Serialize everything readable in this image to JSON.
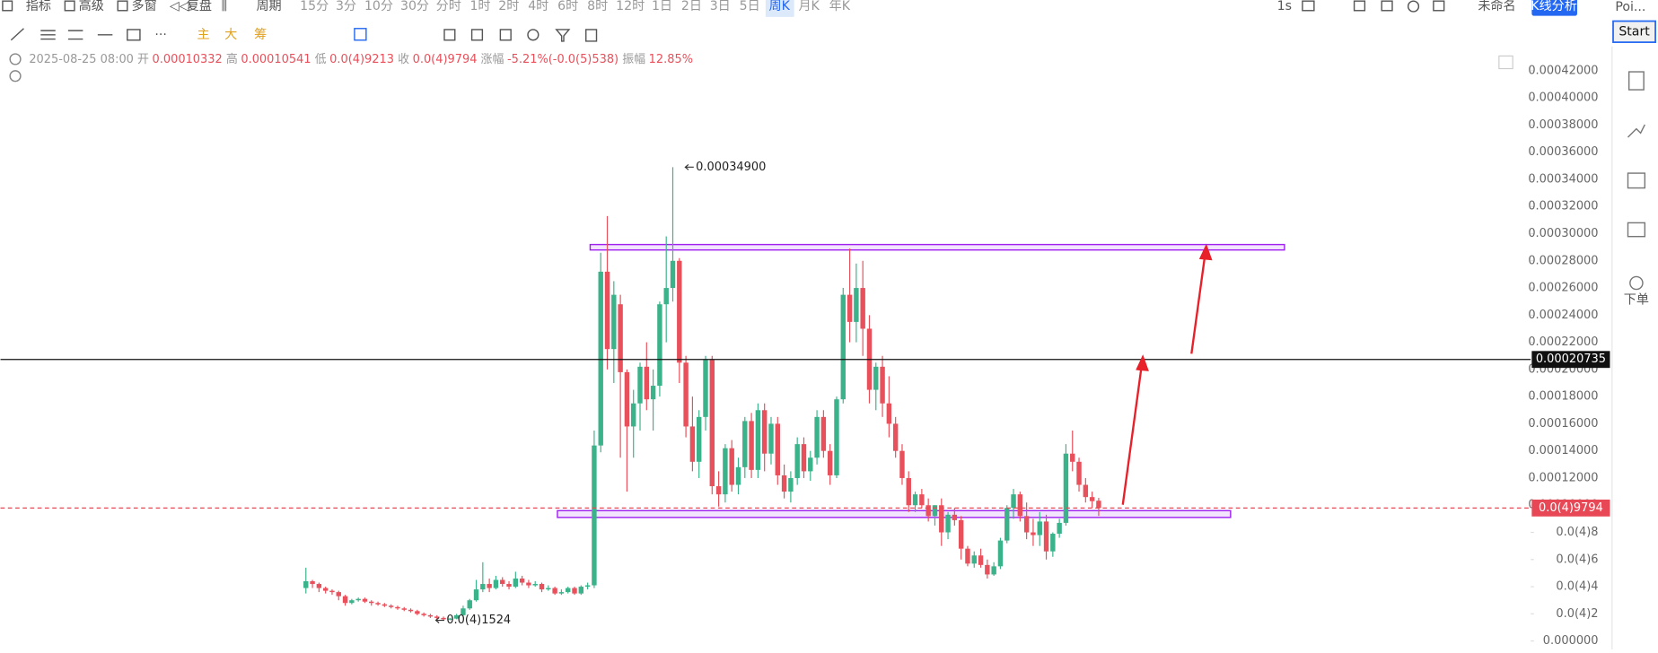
{
  "toolbar": {
    "left": [
      "指标",
      "高级",
      "多窗",
      "复盘",
      "周期"
    ],
    "periods": [
      "15分",
      "3分",
      "10分",
      "30分",
      "分时",
      "1时",
      "2时",
      "4时",
      "6时",
      "8时",
      "12时",
      "1日",
      "2日",
      "3日",
      "5日",
      "周K",
      "月K",
      "年K"
    ],
    "active_period": "周K",
    "right": {
      "interval": "1s",
      "layout_name": "未命名",
      "analysis": "K线分析",
      "panel_tab": "Poi...",
      "start": "Start",
      "order": "下单"
    },
    "drawing": [
      "主",
      "大",
      "筹"
    ]
  },
  "info": {
    "time": "2025-08-25 08:00",
    "open_label": "开",
    "open": "0.00010332",
    "high_label": "高",
    "high": "0.00010541",
    "low_label": "低",
    "low": "0.0(4)9213",
    "close_label": "收",
    "close": "0.0(4)9794",
    "change_label": "涨幅",
    "change": "-5.21%(-0.0(5)538)",
    "amplitude_label": "振幅",
    "amplitude": "12.85%"
  },
  "chart_data": {
    "type": "candlestick",
    "up_color": "#3bb38a",
    "down_color": "#e8505b",
    "grid": false,
    "ylim": [
      -6.2e-06,
      0.0004371
    ],
    "yticks": [
      {
        "value": 0.00042,
        "label": "0.00042000"
      },
      {
        "value": 0.0004,
        "label": "0.00040000"
      },
      {
        "value": 0.00038,
        "label": "0.00038000"
      },
      {
        "value": 0.00036,
        "label": "0.00036000"
      },
      {
        "value": 0.00034,
        "label": "0.00034000"
      },
      {
        "value": 0.00032,
        "label": "0.00032000"
      },
      {
        "value": 0.0003,
        "label": "0.00030000"
      },
      {
        "value": 0.00028,
        "label": "0.00028000"
      },
      {
        "value": 0.00026,
        "label": "0.00026000"
      },
      {
        "value": 0.00024,
        "label": "0.00024000"
      },
      {
        "value": 0.00022,
        "label": "0.00022000"
      },
      {
        "value": 0.0002,
        "label": "0.00020000"
      },
      {
        "value": 0.00018,
        "label": "0.00018000"
      },
      {
        "value": 0.00016,
        "label": "0.00016000"
      },
      {
        "value": 0.00014,
        "label": "0.00014000"
      },
      {
        "value": 0.00012,
        "label": "0.00012000"
      },
      {
        "value": 0.0001,
        "label": "0.00010000"
      },
      {
        "value": 8e-05,
        "label": "0.0(4)8"
      },
      {
        "value": 6e-05,
        "label": "0.0(4)6"
      },
      {
        "value": 4e-05,
        "label": "0.0(4)4"
      },
      {
        "value": 2e-05,
        "label": "0.0(4)2"
      },
      {
        "value": 0,
        "label": "0.000000"
      }
    ],
    "candles": [
      [
        3.9e-05,
        5.4e-05,
        3.5e-05,
        4.4e-05
      ],
      [
        4.4e-05,
        4.5e-05,
        3.9e-05,
        4.2e-05
      ],
      [
        4.2e-05,
        4.3e-05,
        3.6e-05,
        3.9e-05
      ],
      [
        3.9e-05,
        4e-05,
        3.5e-05,
        3.7e-05
      ],
      [
        3.7e-05,
        3.8e-05,
        3.4e-05,
        3.6e-05
      ],
      [
        3.6e-05,
        3.7e-05,
        3e-05,
        3.3e-05
      ],
      [
        3.3e-05,
        3.4e-05,
        2.6e-05,
        2.8e-05
      ],
      [
        2.8e-05,
        3.1e-05,
        2.7e-05,
        3e-05
      ],
      [
        3e-05,
        3.2e-05,
        2.9e-05,
        3.1e-05
      ],
      [
        3.1e-05,
        3.2e-05,
        2.8e-05,
        2.9e-05
      ],
      [
        2.9e-05,
        3e-05,
        2.6e-05,
        2.8e-05
      ],
      [
        2.8e-05,
        2.9e-05,
        2.6e-05,
        2.7e-05
      ],
      [
        2.7e-05,
        2.8e-05,
        2.5e-05,
        2.6e-05
      ],
      [
        2.6e-05,
        2.7e-05,
        2.4e-05,
        2.5e-05
      ],
      [
        2.5e-05,
        2.6e-05,
        2.3e-05,
        2.4e-05
      ],
      [
        2.4e-05,
        2.5e-05,
        2.2e-05,
        2.3e-05
      ],
      [
        2.3e-05,
        2.4e-05,
        2.1e-05,
        2.2e-05
      ],
      [
        2.2e-05,
        2.3e-05,
        1.9e-05,
        2e-05
      ],
      [
        2e-05,
        2.1e-05,
        1.8e-05,
        1.9e-05
      ],
      [
        1.9e-05,
        2e-05,
        1.7e-05,
        1.8e-05
      ],
      [
        1.8e-05,
        1.9e-05,
        1.6e-05,
        1.7e-05
      ],
      [
        1.7e-05,
        1.8e-05,
        1.55e-05,
        1.6e-05
      ],
      [
        1.6e-05,
        1.7e-05,
        1.524e-05,
        1.65e-05
      ],
      [
        1.65e-05,
        2e-05,
        1.6e-05,
        1.9e-05
      ],
      [
        1.9e-05,
        2.6e-05,
        1.85e-05,
        2.4e-05
      ],
      [
        2.4e-05,
        3.1e-05,
        2.3e-05,
        3e-05
      ],
      [
        3e-05,
        4.5e-05,
        2.9e-05,
        3.8e-05
      ],
      [
        3.8e-05,
        5.8e-05,
        3.6e-05,
        4.2e-05
      ],
      [
        4.2e-05,
        4.6e-05,
        3.6e-05,
        3.9e-05
      ],
      [
        3.9e-05,
        4.8e-05,
        3.8e-05,
        4.5e-05
      ],
      [
        4.5e-05,
        4.7e-05,
        4e-05,
        4.2e-05
      ],
      [
        4.2e-05,
        4.4e-05,
        3.8e-05,
        4e-05
      ],
      [
        4e-05,
        5.1e-05,
        3.9e-05,
        4.6e-05
      ],
      [
        4.6e-05,
        4.8e-05,
        4.1e-05,
        4.3e-05
      ],
      [
        4.3e-05,
        4.5e-05,
        3.9e-05,
        4.1e-05
      ],
      [
        4.1e-05,
        4.4e-05,
        4e-05,
        4.2e-05
      ],
      [
        4.2e-05,
        4.3e-05,
        3.6e-05,
        3.8e-05
      ],
      [
        3.8e-05,
        4.1e-05,
        3.7e-05,
        3.9e-05
      ],
      [
        3.9e-05,
        4e-05,
        3.4e-05,
        3.5e-05
      ],
      [
        3.5e-05,
        3.8e-05,
        3.4e-05,
        3.6e-05
      ],
      [
        3.6e-05,
        4e-05,
        3.5e-05,
        3.9e-05
      ],
      [
        3.9e-05,
        4e-05,
        3.4e-05,
        3.5e-05
      ],
      [
        3.5e-05,
        4.1e-05,
        3.4e-05,
        4e-05
      ],
      [
        4e-05,
        4.3e-05,
        3.8e-05,
        4.1e-05
      ],
      [
        4.1e-05,
        0.000155,
        3.9e-05,
        0.000144
      ],
      [
        0.000144,
        0.000286,
        0.000139,
        0.000272
      ],
      [
        0.000272,
        0.000313,
        0.0002,
        0.000215
      ],
      [
        0.000215,
        0.000265,
        0.00019,
        0.000255
      ],
      [
        0.000248,
        0.000255,
        0.000135,
        0.000198
      ],
      [
        0.000198,
        0.0002,
        0.00011,
        0.000158
      ],
      [
        0.000158,
        0.000185,
        0.000135,
        0.000175
      ],
      [
        0.000175,
        0.000205,
        0.000155,
        0.000202
      ],
      [
        0.000202,
        0.00022,
        0.00017,
        0.000178
      ],
      [
        0.000178,
        0.0002,
        0.000155,
        0.000188
      ],
      [
        0.000188,
        0.00025,
        0.00018,
        0.000248
      ],
      [
        0.000248,
        0.000298,
        0.00022,
        0.00026
      ],
      [
        0.00026,
        0.000349,
        0.00025,
        0.00028
      ],
      [
        0.00028,
        0.000282,
        0.00019,
        0.000205
      ],
      [
        0.000205,
        0.00021,
        0.00015,
        0.000158
      ],
      [
        0.000158,
        0.00018,
        0.000125,
        0.000132
      ],
      [
        0.000132,
        0.00017,
        0.00012,
        0.000165
      ],
      [
        0.000165,
        0.00021,
        0.000155,
        0.000207
      ],
      [
        0.000207,
        0.00021,
        0.000108,
        0.000114
      ],
      [
        0.000114,
        0.000125,
        9.9e-05,
        0.000108
      ],
      [
        0.000108,
        0.000145,
        0.000102,
        0.000142
      ],
      [
        0.000142,
        0.000148,
        0.00011,
        0.000115
      ],
      [
        0.000115,
        0.000135,
        0.000108,
        0.000128
      ],
      [
        0.000128,
        0.000165,
        0.00012,
        0.000162
      ],
      [
        0.000162,
        0.000168,
        0.00012,
        0.000126
      ],
      [
        0.000126,
        0.000175,
        0.00012,
        0.00017
      ],
      [
        0.00017,
        0.000175,
        0.000125,
        0.000138
      ],
      [
        0.000138,
        0.000165,
        0.00013,
        0.00016
      ],
      [
        0.00016,
        0.000165,
        0.000115,
        0.000122
      ],
      [
        0.000122,
        0.00013,
        0.000105,
        0.00011
      ],
      [
        0.00011,
        0.000125,
        0.000102,
        0.00012
      ],
      [
        0.00012,
        0.00015,
        0.000115,
        0.000145
      ],
      [
        0.000145,
        0.00015,
        0.00012,
        0.000125
      ],
      [
        0.000125,
        0.00014,
        0.000118,
        0.000135
      ],
      [
        0.000135,
        0.00017,
        0.00013,
        0.000165
      ],
      [
        0.000165,
        0.00017,
        0.000135,
        0.00014
      ],
      [
        0.00014,
        0.000145,
        0.000115,
        0.000122
      ],
      [
        0.000122,
        0.00018,
        0.00012,
        0.000178
      ],
      [
        0.000178,
        0.00026,
        0.000175,
        0.000255
      ],
      [
        0.000255,
        0.000289,
        0.00022,
        0.000235
      ],
      [
        0.000235,
        0.000278,
        0.00022,
        0.00026
      ],
      [
        0.00026,
        0.00028,
        0.00021,
        0.00023
      ],
      [
        0.00023,
        0.00024,
        0.000175,
        0.000185
      ],
      [
        0.000185,
        0.000205,
        0.00017,
        0.000202
      ],
      [
        0.000202,
        0.00021,
        0.000165,
        0.000175
      ],
      [
        0.000175,
        0.000195,
        0.00015,
        0.00016
      ],
      [
        0.00016,
        0.000165,
        0.000135,
        0.00014
      ],
      [
        0.00014,
        0.000145,
        0.000115,
        0.00012
      ],
      [
        0.00012,
        0.000125,
        9.5e-05,
        0.0001
      ],
      [
        0.0001,
        0.00011,
        9.5e-05,
        0.000108
      ],
      [
        0.000108,
        0.000112,
        9.8e-05,
        0.0001
      ],
      [
        0.0001,
        0.000105,
        8.8e-05,
        9.2e-05
      ],
      [
        9.2e-05,
        0.0001,
        8.5e-05,
        0.0001
      ],
      [
        0.0001,
        0.000105,
        7e-05,
        8e-05
      ],
      [
        8e-05,
        9.5e-05,
        7.5e-05,
        9.3e-05
      ],
      [
        9.3e-05,
        9.8e-05,
        8.5e-05,
        8.9e-05
      ],
      [
        8.9e-05,
        9.2e-05,
        6e-05,
        6.8e-05
      ],
      [
        6.8e-05,
        7e-05,
        5.5e-05,
        5.7e-05
      ],
      [
        5.7e-05,
        6.6e-05,
        5.4e-05,
        6.3e-05
      ],
      [
        6.3e-05,
        6.8e-05,
        5.4e-05,
        5.6e-05
      ],
      [
        5.6e-05,
        6e-05,
        4.6e-05,
        4.9e-05
      ],
      [
        4.9e-05,
        5.8e-05,
        4.8e-05,
        5.5e-05
      ],
      [
        5.5e-05,
        7.6e-05,
        5.3e-05,
        7.4e-05
      ],
      [
        7.4e-05,
        0.0001,
        7.2e-05,
        9.8e-05
      ],
      [
        9.8e-05,
        0.000112,
        9e-05,
        0.000108
      ],
      [
        0.000108,
        0.00011,
        8.8e-05,
        9.2e-05
      ],
      [
        9.2e-05,
        0.000102,
        7.5e-05,
        8e-05
      ],
      [
        8e-05,
        9e-05,
        7e-05,
        7.8e-05
      ],
      [
        7.8e-05,
        9.5e-05,
        7e-05,
        8.8e-05
      ],
      [
        8.8e-05,
        9.3e-05,
        6e-05,
        6.6e-05
      ],
      [
        6.6e-05,
        8e-05,
        6.2e-05,
        7.9e-05
      ],
      [
        7.9e-05,
        9e-05,
        7.6e-05,
        8.7e-05
      ],
      [
        8.7e-05,
        0.000145,
        8.5e-05,
        0.000138
      ],
      [
        0.000138,
        0.000155,
        0.000125,
        0.000132
      ],
      [
        0.000132,
        0.000135,
        0.00011,
        0.000115
      ],
      [
        0.000115,
        0.00012,
        0.000102,
        0.000106
      ],
      [
        0.000106,
        0.00011,
        9.8e-05,
        0.000103
      ],
      [
        0.00010332,
        0.00010541,
        9.213e-05,
        9.794e-05
      ]
    ],
    "levels": [
      {
        "value": 0.00020735,
        "label": "0.00020735",
        "color": "#111111",
        "dashed": false
      },
      {
        "value": 9.794e-05,
        "label": "0.0(4)9794",
        "color": "#e84855",
        "dashed": true
      }
    ],
    "zones": [
      {
        "low": 0.000288,
        "high": 0.000292,
        "color": "#a020f0"
      },
      {
        "low": 9.1e-05,
        "high": 9.6e-05,
        "color": "#a020f0"
      }
    ],
    "annotations": [
      {
        "value": 0.000349,
        "label": "0.00034900"
      },
      {
        "value": 1.524e-05,
        "label": "0.0(4)1524"
      }
    ]
  }
}
